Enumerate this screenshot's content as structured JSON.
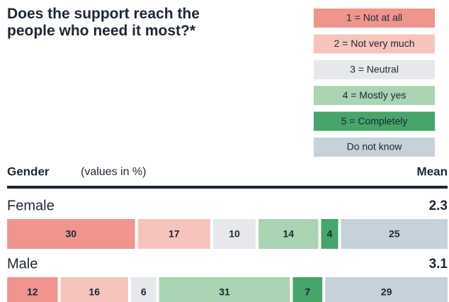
{
  "chart_data": {
    "type": "bar",
    "orientation": "horizontal",
    "stacked": true,
    "title": "Does the support reach the people who need it most?*",
    "y_axis_label": "Gender",
    "note": "(values in %)",
    "mean_label": "Mean",
    "categories": [
      "Female",
      "Male"
    ],
    "mean": [
      2.3,
      3.1
    ],
    "series": [
      {
        "name": "1 = Not at all",
        "color": "#f0958e",
        "values": [
          30,
          12
        ]
      },
      {
        "name": "2 = Not very much",
        "color": "#f7c4bd",
        "values": [
          17,
          16
        ]
      },
      {
        "name": "3 = Neutral",
        "color": "#e6e8ec",
        "values": [
          10,
          6
        ]
      },
      {
        "name": "4 = Mostly yes",
        "color": "#aad4b3",
        "values": [
          14,
          31
        ]
      },
      {
        "name": "5 = Completely",
        "color": "#45a56b",
        "values": [
          4,
          7
        ]
      },
      {
        "name": "Do not know",
        "color": "#c7d1da",
        "values": [
          25,
          29
        ]
      }
    ]
  }
}
